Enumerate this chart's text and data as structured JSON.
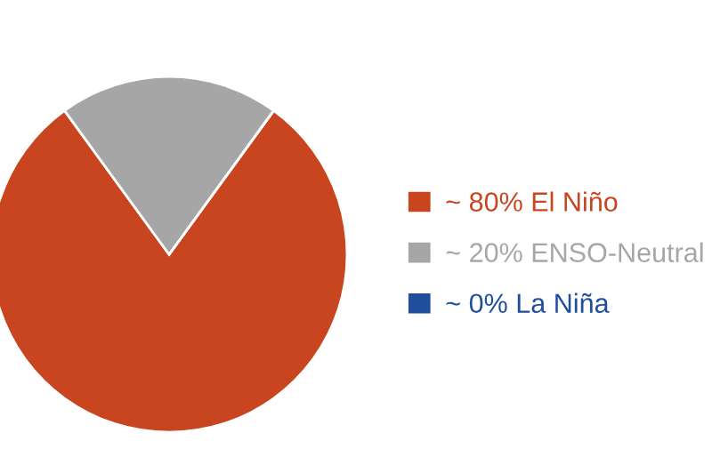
{
  "chart_data": {
    "type": "pie",
    "categories": [
      "El Niño",
      "ENSO-Neutral",
      "La Niña"
    ],
    "values": [
      80,
      20,
      0
    ],
    "colors": [
      "#c8451f",
      "#a6a6a6",
      "#1f4e9c"
    ],
    "value_labels": [
      "~ 80%",
      "~ 20%",
      "~ 0%"
    ],
    "legend": "right"
  }
}
